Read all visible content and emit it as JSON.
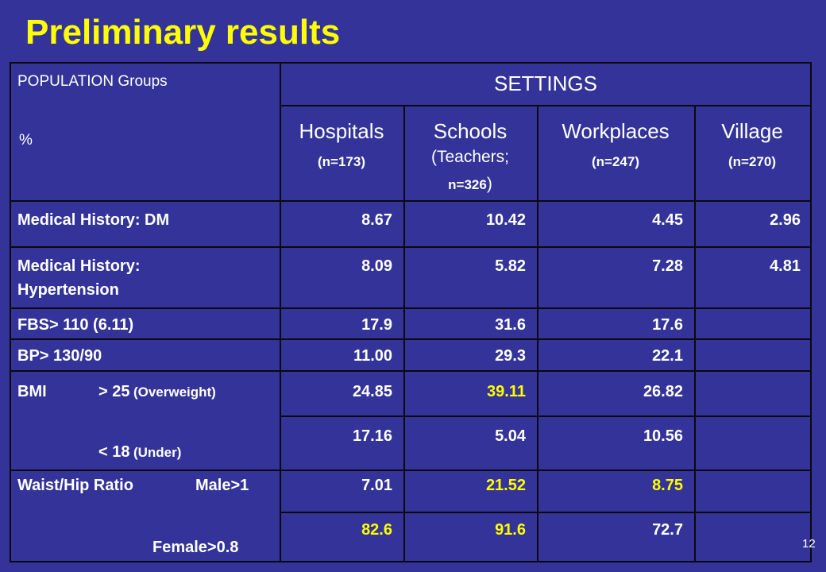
{
  "slide": {
    "title": "Preliminary results",
    "number": "12"
  },
  "table": {
    "corner": {
      "line1": "POPULATION Groups",
      "line2": "%"
    },
    "settings_header": "SETTINGS",
    "columns": [
      {
        "name": "Hospitals",
        "sub": "(n=173)"
      },
      {
        "name": "Schools",
        "sub1": "(Teachers;",
        "sub2_a": "n=326",
        "sub2_b": ")"
      },
      {
        "name": "Workplaces",
        "sub": "(n=247)"
      },
      {
        "name": "Village",
        "sub": "(n=270)"
      }
    ],
    "rows": {
      "dm": {
        "label": "Medical History: DM",
        "values": [
          "8.67",
          "10.42",
          "4.45",
          "2.96"
        ]
      },
      "htn": {
        "label1": "Medical History:",
        "label2": "Hypertension",
        "values": [
          "8.09",
          "5.82",
          "7.28",
          "4.81"
        ]
      },
      "fbs": {
        "label": "FBS> 110 (6.11)",
        "values": [
          "17.9",
          "31.6",
          "17.6",
          ""
        ]
      },
      "bp": {
        "label": "BP> 130/90",
        "values": [
          "11.00",
          "29.3",
          "22.1",
          ""
        ]
      },
      "bmi": {
        "label_main": "BMI",
        "over_label": "> 25",
        "over_sub": "(Overweight)",
        "under_label": "< 18",
        "under_sub": "(Under)",
        "over_values": [
          "24.85",
          "39.11",
          "26.82",
          ""
        ],
        "under_values": [
          "17.16",
          "5.04",
          "10.56",
          ""
        ]
      },
      "whr": {
        "label_main": "Waist/Hip Ratio",
        "male_label": "Male>1",
        "female_label": "Female>0.8",
        "male_values": [
          "7.01",
          "21.52",
          "8.75",
          ""
        ],
        "female_values": [
          "82.6",
          "91.6",
          "72.7",
          ""
        ]
      }
    },
    "highlight_color": "#ffff00",
    "text_color": "#ffffff",
    "background": "#333399"
  }
}
